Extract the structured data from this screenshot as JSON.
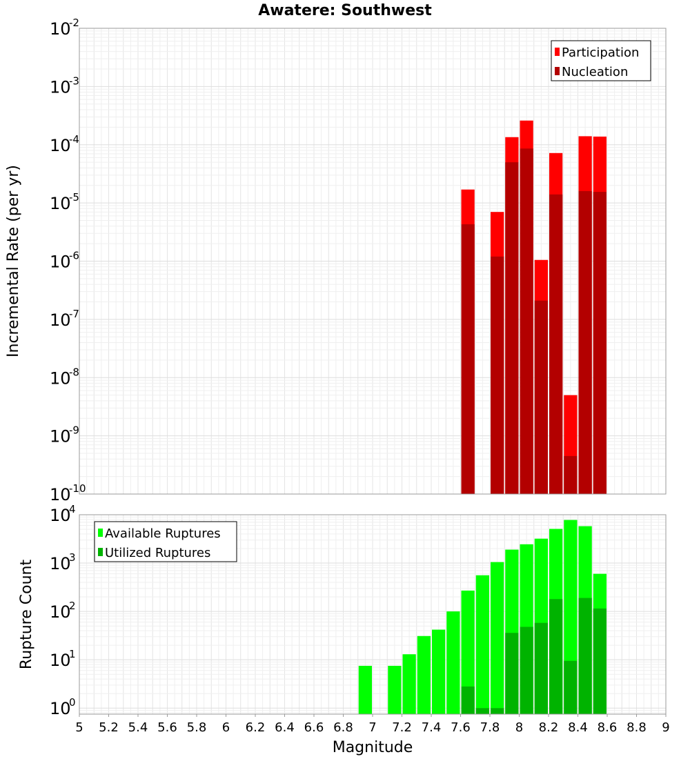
{
  "chart_data": [
    {
      "type": "bar",
      "title": "Awatere: Southwest",
      "xlabel": "",
      "ylabel": "Incremental Rate (per yr)",
      "yscale": "log",
      "ylim": [
        1e-10,
        0.01
      ],
      "xlim": [
        5,
        9
      ],
      "yticks": [
        {
          "base": "10",
          "exp": "-2"
        },
        {
          "base": "10",
          "exp": "-3"
        },
        {
          "base": "10",
          "exp": "-4"
        },
        {
          "base": "10",
          "exp": "-5"
        },
        {
          "base": "10",
          "exp": "-6"
        },
        {
          "base": "10",
          "exp": "-7"
        },
        {
          "base": "10",
          "exp": "-8"
        },
        {
          "base": "10",
          "exp": "-9"
        },
        {
          "base": "10",
          "exp": "-10"
        }
      ],
      "legend_position": "top-right",
      "x": [
        7.65,
        7.85,
        7.95,
        8.05,
        8.15,
        8.25,
        8.35,
        8.45,
        8.55
      ],
      "series": [
        {
          "name": "Participation",
          "color": "#ff0000",
          "values": [
            1.7e-05,
            7e-06,
            0.000135,
            0.00026,
            1.05e-06,
            7.2e-05,
            5e-09,
            0.00014,
            0.000138
          ]
        },
        {
          "name": "Nucleation",
          "color": "#b30000",
          "values": [
            4.3e-06,
            1.2e-06,
            5e-05,
            8.6e-05,
            2.1e-07,
            1.4e-05,
            4.5e-10,
            1.6e-05,
            1.55e-05
          ]
        }
      ]
    },
    {
      "type": "bar",
      "title": "",
      "xlabel": "Magnitude",
      "ylabel": "Rupture Count",
      "yscale": "log",
      "ylim": [
        0.75,
        10000
      ],
      "xlim": [
        5,
        9
      ],
      "yticks": [
        {
          "base": "10",
          "exp": "4"
        },
        {
          "base": "10",
          "exp": "3"
        },
        {
          "base": "10",
          "exp": "2"
        },
        {
          "base": "10",
          "exp": "1"
        },
        {
          "base": "10",
          "exp": "0"
        }
      ],
      "xticks": [
        "5",
        "5.2",
        "5.4",
        "5.6",
        "5.8",
        "6",
        "6.2",
        "6.4",
        "6.6",
        "6.8",
        "7",
        "7.2",
        "7.4",
        "7.6",
        "7.8",
        "8",
        "8.2",
        "8.4",
        "8.6",
        "8.8",
        "9"
      ],
      "legend_position": "top-left",
      "x": [
        6.95,
        7.15,
        7.25,
        7.35,
        7.45,
        7.55,
        7.65,
        7.75,
        7.85,
        7.95,
        8.05,
        8.15,
        8.25,
        8.35,
        8.45,
        8.55
      ],
      "series": [
        {
          "name": "Available Ruptures",
          "color": "#00ff00",
          "values": [
            7.5,
            7.5,
            13,
            31,
            42,
            100,
            270,
            560,
            1050,
            1900,
            2450,
            3200,
            5100,
            7800,
            5800,
            600
          ]
        },
        {
          "name": "Utilized Ruptures",
          "color": "#00b300",
          "values": [
            null,
            null,
            null,
            null,
            null,
            null,
            2.8,
            1,
            1,
            36,
            48,
            58,
            180,
            9.5,
            190,
            115
          ]
        }
      ]
    }
  ]
}
